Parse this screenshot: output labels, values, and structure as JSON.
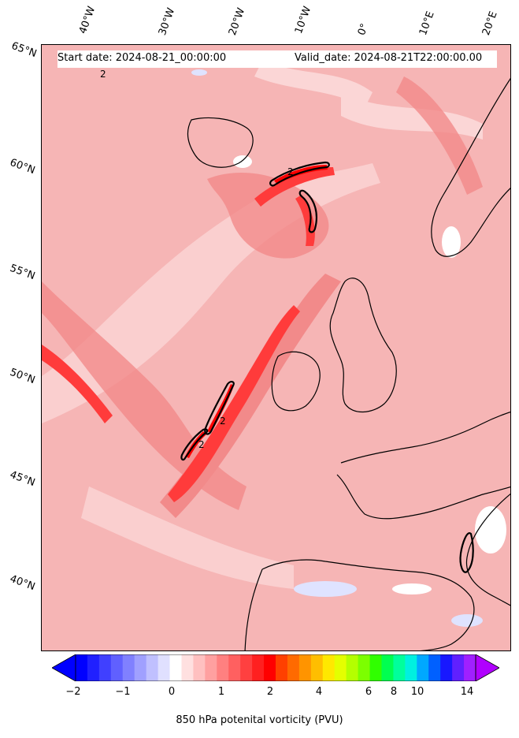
{
  "header": {
    "start_date": "Start date: 2024-08-21_00:00:00",
    "valid_date": "Valid_date: 2024-08-21T22:00:00.00"
  },
  "longitude_labels": [
    "40°W",
    "30°W",
    "20°W",
    "10°W",
    "0°",
    "10°E",
    "20°E"
  ],
  "latitude_labels": [
    "65°N",
    "60°N",
    "55°N",
    "50°N",
    "45°N",
    "40°N"
  ],
  "contour_labels": [
    "2",
    "2",
    "2",
    "2"
  ],
  "colorbar": {
    "title": "850 hPa potenital vorticity (PVU)",
    "tick_labels": [
      "−2",
      "−1",
      "0",
      "1",
      "2",
      "4",
      "6",
      "8",
      "10",
      "14"
    ],
    "colors": [
      "#0000ff",
      "#2020ff",
      "#4040ff",
      "#6060ff",
      "#8080ff",
      "#a0a0ff",
      "#c0c0ff",
      "#e0e0ff",
      "#ffffff",
      "#ffe0e0",
      "#ffc0c0",
      "#ffa0a0",
      "#ff8080",
      "#ff6060",
      "#ff4040",
      "#ff2020",
      "#ff0000",
      "#ff4000",
      "#ff6a00",
      "#ff9400",
      "#ffbe00",
      "#ffe800",
      "#e4ff00",
      "#b4ff00",
      "#7cff00",
      "#30ff00",
      "#00ff50",
      "#00ff9c",
      "#00f0e0",
      "#00a8ff",
      "#0060ff",
      "#1818ff",
      "#6020ff",
      "#a020ff"
    ],
    "extend_low_color": "#0000ff",
    "extend_high_color": "#b000ff"
  },
  "map_colors": {
    "ocean_base": "#f6b5b5",
    "weak": "#fbd6d6",
    "moderate": "#f28a8a",
    "strong": "#ff3b3b",
    "very_strong": "#ff0000",
    "negative": "#dfe3ff"
  }
}
